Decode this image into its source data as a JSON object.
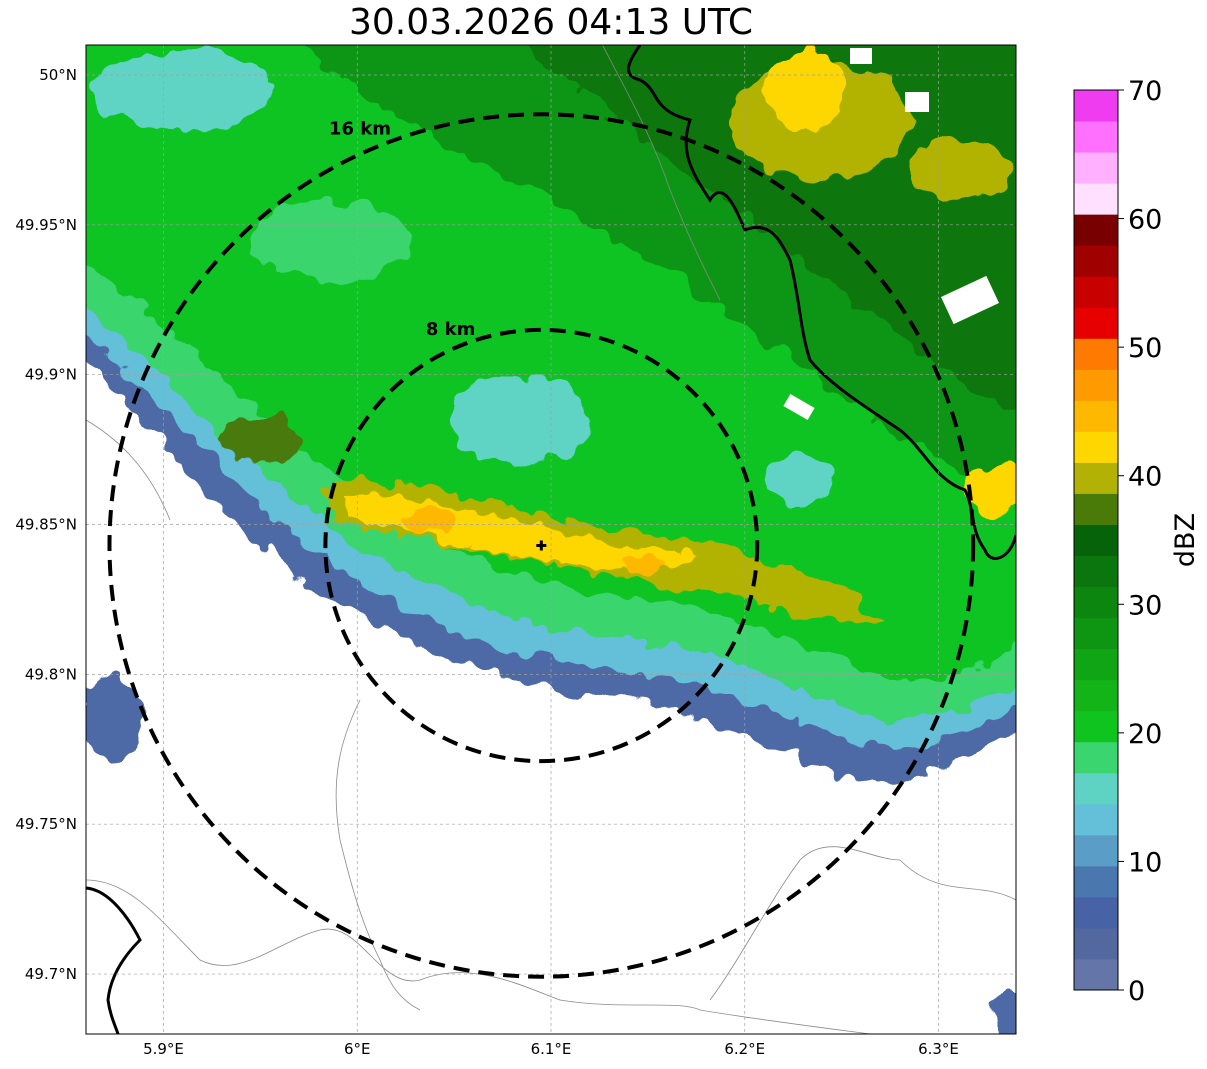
{
  "title": "30.03.2026 04:13 UTC",
  "map": {
    "lon_range": [
      5.86,
      6.34
    ],
    "lat_range": [
      49.68,
      50.01
    ],
    "lon_ticks": [
      {
        "value": 5.9,
        "label": "5.9°E"
      },
      {
        "value": 6.0,
        "label": "6°E"
      },
      {
        "value": 6.1,
        "label": "6.1°E"
      },
      {
        "value": 6.2,
        "label": "6.2°E"
      },
      {
        "value": 6.3,
        "label": "6.3°E"
      }
    ],
    "lat_ticks": [
      {
        "value": 50.0,
        "label": "50°N"
      },
      {
        "value": 49.95,
        "label": "49.95°N"
      },
      {
        "value": 49.9,
        "label": "49.9°N"
      },
      {
        "value": 49.85,
        "label": "49.85°N"
      },
      {
        "value": 49.8,
        "label": "49.8°N"
      },
      {
        "value": 49.75,
        "label": "49.75°N"
      },
      {
        "value": 49.7,
        "label": "49.7°N"
      }
    ],
    "radar_site": {
      "lon": 6.095,
      "lat": 49.843
    },
    "range_rings": [
      {
        "radius_km": 8,
        "label": "8 km"
      },
      {
        "radius_km": 16,
        "label": "16 km"
      }
    ]
  },
  "colorbar": {
    "label": "dBZ",
    "min": 0,
    "max": 70,
    "step": 2.5,
    "tick_labels": [
      "0",
      "10",
      "20",
      "30",
      "40",
      "50",
      "60",
      "70"
    ],
    "colors": [
      "#6475a8",
      "#5468a0",
      "#4862a6",
      "#4a78ae",
      "#5a9ec8",
      "#64c0d8",
      "#5ed3c4",
      "#3ad56e",
      "#10c420",
      "#12b418",
      "#10a514",
      "#0e9612",
      "#0c860f",
      "#0a760d",
      "#07630a",
      "#4a7a08",
      "#b2b206",
      "#ffd700",
      "#ffb800",
      "#ff9a00",
      "#ff7a00",
      "#e60000",
      "#c80000",
      "#a00000",
      "#780000",
      "#ffe0ff",
      "#ffb0ff",
      "#ff70ff",
      "#f03cf0"
    ]
  }
}
